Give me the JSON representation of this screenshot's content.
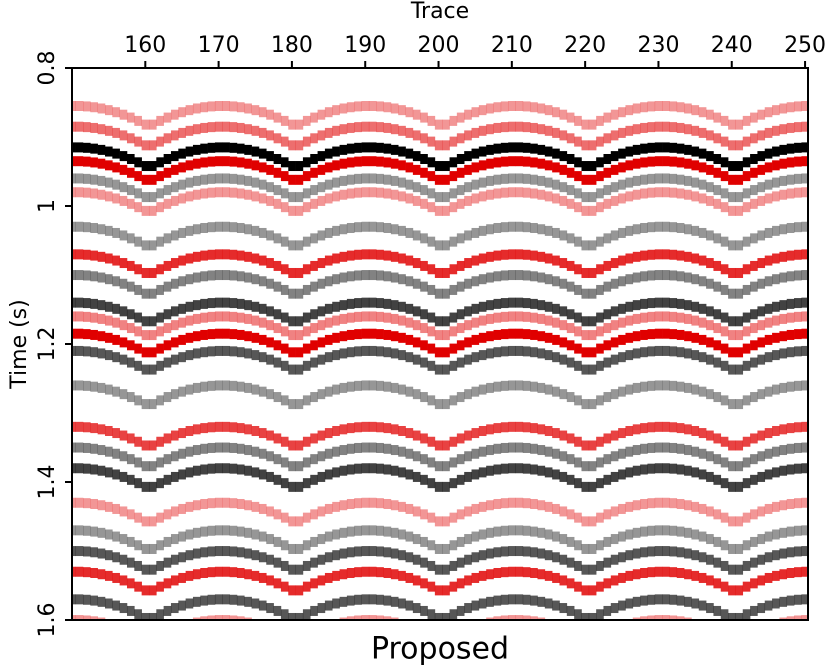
{
  "chart_data": {
    "type": "seismic",
    "title": "Proposed",
    "xlabel": "Trace",
    "ylabel": "Time (s)",
    "xlim": [
      150,
      250.4
    ],
    "ylim": [
      0.8,
      1.6
    ],
    "xticks": [
      160,
      170,
      180,
      190,
      200,
      210,
      220,
      230,
      240,
      250
    ],
    "yticks": [
      0.8,
      1,
      1.2,
      1.4,
      1.6
    ],
    "gather_centers": [
      150.5,
      170.5,
      190.5,
      210.5,
      230.5,
      250.5
    ],
    "positive_color": "#e00000",
    "negative_color": "#000000",
    "reflectors": {
      "times": [
        0.855,
        0.885,
        0.915,
        0.935,
        0.96,
        0.98,
        1.03,
        1.07,
        1.1,
        1.14,
        1.16,
        1.185,
        1.21,
        1.26,
        1.32,
        1.35,
        1.38,
        1.43,
        1.47,
        1.5,
        1.53,
        1.57,
        1.6
      ],
      "amplitudes": [
        0.3,
        0.5,
        -1,
        1,
        -0.3,
        0.3,
        -0.3,
        0.8,
        -0.4,
        -0.7,
        0.4,
        1,
        -0.6,
        -0.3,
        0.7,
        -0.4,
        -0.7,
        0.3,
        -0.3,
        -0.6,
        0.8,
        -0.6,
        0.3
      ]
    }
  }
}
